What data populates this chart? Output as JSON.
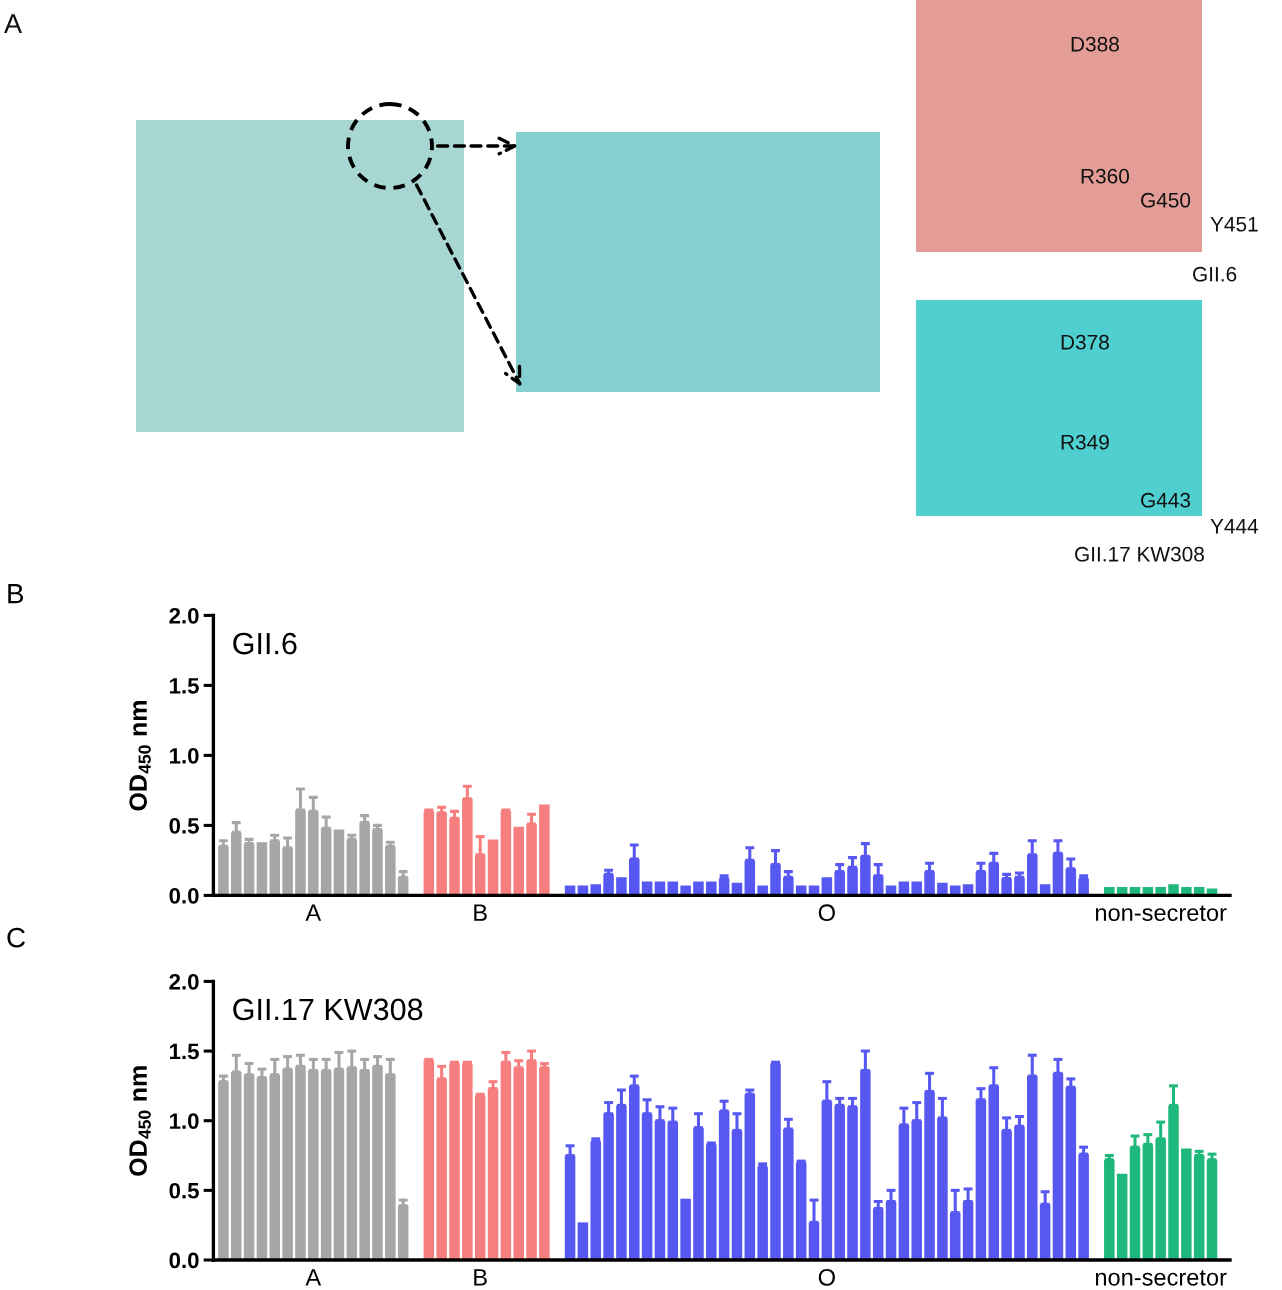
{
  "chart_data": [
    {
      "type": "other",
      "annotations": [
        "A",
        "D388",
        "R360",
        "G450",
        "Y451",
        "GII.6",
        "D378",
        "R349",
        "G443",
        "Y444",
        "GII.17 KW308"
      ]
    },
    {
      "type": "bar",
      "title": "GII.6",
      "ylabel": "OD$_{450}$ nm",
      "annotations": [
        "B"
      ],
      "categories": [
        null,
        null,
        null,
        null,
        null,
        null,
        null,
        "A",
        null,
        null,
        null,
        null,
        null,
        null,
        null,
        null,
        null,
        null,
        null,
        null,
        "B",
        null,
        null,
        null,
        null,
        null,
        null,
        null,
        null,
        null,
        null,
        null,
        null,
        null,
        null,
        null,
        null,
        null,
        null,
        null,
        null,
        null,
        null,
        null,
        null,
        null,
        null,
        "O",
        null,
        null,
        null,
        null,
        null,
        null,
        null,
        null,
        null,
        null,
        null,
        null,
        null,
        null,
        null,
        null,
        null,
        null,
        null,
        null,
        null,
        null,
        null,
        null,
        null,
        "non-secretor",
        null,
        null,
        null,
        null
      ],
      "values": [
        0.35,
        0.45,
        0.37,
        0.38,
        0.39,
        0.34,
        0.61,
        0.6,
        0.48,
        0.47,
        0.4,
        0.52,
        0.47,
        0.35,
        0.13,
        null,
        0.6,
        0.59,
        0.55,
        0.69,
        0.29,
        0.4,
        0.6,
        0.49,
        0.51,
        0.65,
        null,
        0.07,
        0.07,
        0.08,
        0.15,
        0.13,
        0.26,
        0.1,
        0.1,
        0.1,
        0.07,
        0.1,
        0.1,
        0.12,
        0.09,
        0.25,
        0.07,
        0.22,
        0.13,
        0.07,
        0.07,
        0.13,
        0.17,
        0.2,
        0.28,
        0.14,
        0.07,
        0.1,
        0.1,
        0.17,
        0.09,
        0.07,
        0.08,
        0.17,
        0.23,
        0.12,
        0.13,
        0.29,
        0.08,
        0.3,
        0.19,
        0.12,
        null,
        0.06,
        0.06,
        0.06,
        0.06,
        0.06,
        0.08,
        0.06,
        0.06,
        0.05
      ],
      "errors": [
        [
          0.35,
          0.39
        ],
        [
          0.45,
          0.52
        ],
        [
          0.37,
          0.4
        ],
        null,
        [
          0.39,
          0.43
        ],
        [
          0.34,
          0.41
        ],
        [
          0.61,
          0.76
        ],
        [
          0.6,
          0.7
        ],
        [
          0.48,
          0.56
        ],
        null,
        [
          0.4,
          0.43
        ],
        [
          0.52,
          0.57
        ],
        [
          0.47,
          0.5
        ],
        [
          0.35,
          0.38
        ],
        [
          0.13,
          0.17
        ],
        null,
        [
          0.6,
          0.61
        ],
        [
          0.59,
          0.63
        ],
        [
          0.55,
          0.6
        ],
        [
          0.69,
          0.78
        ],
        [
          0.29,
          0.42
        ],
        null,
        [
          0.6,
          0.61
        ],
        null,
        [
          0.51,
          0.58
        ],
        null,
        null,
        null,
        null,
        null,
        [
          0.15,
          0.18
        ],
        null,
        [
          0.26,
          0.36
        ],
        null,
        null,
        null,
        null,
        null,
        null,
        [
          0.12,
          0.14
        ],
        null,
        [
          0.25,
          0.34
        ],
        null,
        [
          0.22,
          0.32
        ],
        [
          0.13,
          0.17
        ],
        null,
        null,
        null,
        [
          0.17,
          0.22
        ],
        [
          0.2,
          0.27
        ],
        [
          0.28,
          0.37
        ],
        [
          0.14,
          0.22
        ],
        null,
        null,
        null,
        [
          0.17,
          0.23
        ],
        null,
        null,
        null,
        [
          0.17,
          0.23
        ],
        [
          0.23,
          0.3
        ],
        [
          0.12,
          0.15
        ],
        [
          0.13,
          0.16
        ],
        [
          0.29,
          0.39
        ],
        null,
        [
          0.3,
          0.39
        ],
        [
          0.19,
          0.26
        ],
        [
          0.12,
          0.14
        ],
        null,
        null,
        null,
        null,
        null,
        null,
        null,
        null,
        null,
        null
      ],
      "colors": [
        "#a6a6a6",
        "#a6a6a6",
        "#a6a6a6",
        "#a6a6a6",
        "#a6a6a6",
        "#a6a6a6",
        "#a6a6a6",
        "#a6a6a6",
        "#a6a6a6",
        "#a6a6a6",
        "#a6a6a6",
        "#a6a6a6",
        "#a6a6a6",
        "#a6a6a6",
        "#a6a6a6",
        null,
        "#f77e7e",
        "#f77e7e",
        "#f77e7e",
        "#f77e7e",
        "#f77e7e",
        "#f77e7e",
        "#f77e7e",
        "#f77e7e",
        "#f77e7e",
        "#f77e7e",
        null,
        "#5757f2",
        "#5757f2",
        "#5757f2",
        "#5757f2",
        "#5757f2",
        "#5757f2",
        "#5757f2",
        "#5757f2",
        "#5757f2",
        "#5757f2",
        "#5757f2",
        "#5757f2",
        "#5757f2",
        "#5757f2",
        "#5757f2",
        "#5757f2",
        "#5757f2",
        "#5757f2",
        "#5757f2",
        "#5757f2",
        "#5757f2",
        "#5757f2",
        "#5757f2",
        "#5757f2",
        "#5757f2",
        "#5757f2",
        "#5757f2",
        "#5757f2",
        "#5757f2",
        "#5757f2",
        "#5757f2",
        "#5757f2",
        "#5757f2",
        "#5757f2",
        "#5757f2",
        "#5757f2",
        "#5757f2",
        "#5757f2",
        "#5757f2",
        "#5757f2",
        "#5757f2",
        null,
        "#1fb87c",
        "#1fb87c",
        "#1fb87c",
        "#1fb87c",
        "#1fb87c",
        "#1fb87c",
        "#1fb87c",
        "#1fb87c",
        "#1fb87c"
      ],
      "ylim": [
        0,
        2
      ],
      "yticks": [
        {
          "value": 0,
          "label": "0.0"
        },
        {
          "value": 0.5,
          "label": "0.5"
        },
        {
          "value": 1,
          "label": "1.0"
        },
        {
          "value": 1.5,
          "label": "1.5"
        },
        {
          "value": 2,
          "label": "2.0"
        }
      ]
    },
    {
      "type": "bar",
      "title": "GII.17 KW308",
      "ylabel": "OD$_{450}$ nm",
      "annotations": [
        "C"
      ],
      "categories": [
        null,
        null,
        null,
        null,
        null,
        null,
        null,
        "A",
        null,
        null,
        null,
        null,
        null,
        null,
        null,
        null,
        null,
        null,
        null,
        null,
        "B",
        null,
        null,
        null,
        null,
        null,
        null,
        null,
        null,
        null,
        null,
        null,
        null,
        null,
        null,
        null,
        null,
        null,
        null,
        null,
        null,
        null,
        null,
        null,
        null,
        null,
        null,
        "O",
        null,
        null,
        null,
        null,
        null,
        null,
        null,
        null,
        null,
        null,
        null,
        null,
        null,
        null,
        null,
        null,
        null,
        null,
        null,
        null,
        null,
        null,
        null,
        null,
        null,
        "non-secretor",
        null,
        null,
        null,
        null
      ],
      "values": [
        1.28,
        1.35,
        1.33,
        1.31,
        1.33,
        1.37,
        1.39,
        1.36,
        1.36,
        1.37,
        1.38,
        1.36,
        1.39,
        1.33,
        0.39,
        null,
        1.43,
        1.3,
        1.41,
        1.41,
        1.18,
        1.23,
        1.42,
        1.38,
        1.43,
        1.38,
        null,
        0.75,
        0.27,
        0.85,
        1.05,
        1.11,
        1.25,
        1.05,
        1.0,
        0.99,
        0.44,
        0.95,
        0.83,
        1.07,
        0.93,
        1.19,
        0.67,
        1.41,
        0.94,
        0.7,
        0.27,
        1.14,
        1.11,
        1.1,
        1.36,
        0.37,
        0.42,
        0.97,
        1.0,
        1.21,
        1.02,
        0.34,
        0.42,
        1.15,
        1.25,
        0.93,
        0.96,
        1.32,
        0.4,
        1.34,
        1.24,
        0.76,
        null,
        0.72,
        0.62,
        0.81,
        0.83,
        0.87,
        1.11,
        0.8,
        0.75,
        0.72
      ],
      "errors": [
        [
          1.28,
          1.32
        ],
        [
          1.35,
          1.47
        ],
        [
          1.33,
          1.41
        ],
        [
          1.31,
          1.37
        ],
        [
          1.33,
          1.44
        ],
        [
          1.37,
          1.46
        ],
        [
          1.39,
          1.47
        ],
        [
          1.36,
          1.44
        ],
        [
          1.36,
          1.44
        ],
        [
          1.37,
          1.49
        ],
        [
          1.38,
          1.5
        ],
        [
          1.36,
          1.44
        ],
        [
          1.39,
          1.46
        ],
        [
          1.33,
          1.44
        ],
        [
          0.39,
          0.43
        ],
        null,
        [
          1.43,
          1.44
        ],
        [
          1.3,
          1.39
        ],
        [
          1.41,
          1.42
        ],
        [
          1.41,
          1.42
        ],
        [
          1.18,
          1.19
        ],
        [
          1.23,
          1.28
        ],
        [
          1.42,
          1.49
        ],
        [
          1.38,
          1.43
        ],
        [
          1.43,
          1.5
        ],
        [
          1.38,
          1.41
        ],
        null,
        [
          0.75,
          0.82
        ],
        null,
        [
          0.85,
          0.87
        ],
        [
          1.05,
          1.13
        ],
        [
          1.11,
          1.22
        ],
        [
          1.25,
          1.32
        ],
        [
          1.05,
          1.15
        ],
        [
          1.0,
          1.1
        ],
        [
          0.99,
          1.09
        ],
        null,
        [
          0.95,
          1.05
        ],
        [
          0.83,
          0.84
        ],
        [
          1.07,
          1.14
        ],
        [
          0.93,
          1.05
        ],
        [
          1.19,
          1.22
        ],
        [
          0.67,
          0.69
        ],
        [
          1.41,
          1.42
        ],
        [
          0.94,
          1.01
        ],
        [
          0.7,
          0.71
        ],
        [
          0.27,
          0.43
        ],
        [
          1.14,
          1.28
        ],
        [
          1.11,
          1.16
        ],
        [
          1.1,
          1.16
        ],
        [
          1.36,
          1.5
        ],
        [
          0.37,
          0.42
        ],
        [
          0.42,
          0.5
        ],
        [
          0.97,
          1.09
        ],
        [
          1.0,
          1.13
        ],
        [
          1.21,
          1.34
        ],
        [
          1.02,
          1.16
        ],
        [
          0.34,
          0.5
        ],
        [
          0.42,
          0.51
        ],
        [
          1.15,
          1.23
        ],
        [
          1.25,
          1.38
        ],
        [
          0.93,
          1.02
        ],
        [
          0.96,
          1.03
        ],
        [
          1.32,
          1.47
        ],
        [
          0.4,
          0.49
        ],
        [
          1.34,
          1.44
        ],
        [
          1.24,
          1.3
        ],
        [
          0.76,
          0.81
        ],
        null,
        [
          0.72,
          0.75
        ],
        null,
        [
          0.81,
          0.89
        ],
        [
          0.83,
          0.9
        ],
        [
          0.87,
          0.99
        ],
        [
          1.11,
          1.25
        ],
        null,
        [
          0.75,
          0.78
        ],
        [
          0.72,
          0.76
        ]
      ],
      "colors": [
        "#a6a6a6",
        "#a6a6a6",
        "#a6a6a6",
        "#a6a6a6",
        "#a6a6a6",
        "#a6a6a6",
        "#a6a6a6",
        "#a6a6a6",
        "#a6a6a6",
        "#a6a6a6",
        "#a6a6a6",
        "#a6a6a6",
        "#a6a6a6",
        "#a6a6a6",
        "#a6a6a6",
        null,
        "#f77e7e",
        "#f77e7e",
        "#f77e7e",
        "#f77e7e",
        "#f77e7e",
        "#f77e7e",
        "#f77e7e",
        "#f77e7e",
        "#f77e7e",
        "#f77e7e",
        null,
        "#5757f2",
        "#5757f2",
        "#5757f2",
        "#5757f2",
        "#5757f2",
        "#5757f2",
        "#5757f2",
        "#5757f2",
        "#5757f2",
        "#5757f2",
        "#5757f2",
        "#5757f2",
        "#5757f2",
        "#5757f2",
        "#5757f2",
        "#5757f2",
        "#5757f2",
        "#5757f2",
        "#5757f2",
        "#5757f2",
        "#5757f2",
        "#5757f2",
        "#5757f2",
        "#5757f2",
        "#5757f2",
        "#5757f2",
        "#5757f2",
        "#5757f2",
        "#5757f2",
        "#5757f2",
        "#5757f2",
        "#5757f2",
        "#5757f2",
        "#5757f2",
        "#5757f2",
        "#5757f2",
        "#5757f2",
        "#5757f2",
        "#5757f2",
        "#5757f2",
        "#5757f2",
        null,
        "#1fb87c",
        "#1fb87c",
        "#1fb87c",
        "#1fb87c",
        "#1fb87c",
        "#1fb87c",
        "#1fb87c",
        "#1fb87c",
        "#1fb87c"
      ],
      "ylim": [
        0,
        2
      ],
      "yticks": [
        {
          "value": 0,
          "label": "0.0"
        },
        {
          "value": 0.5,
          "label": "0.5"
        },
        {
          "value": 1,
          "label": "1.0"
        },
        {
          "value": 1.5,
          "label": "1.5"
        },
        {
          "value": 2,
          "label": "2.0"
        }
      ]
    }
  ]
}
